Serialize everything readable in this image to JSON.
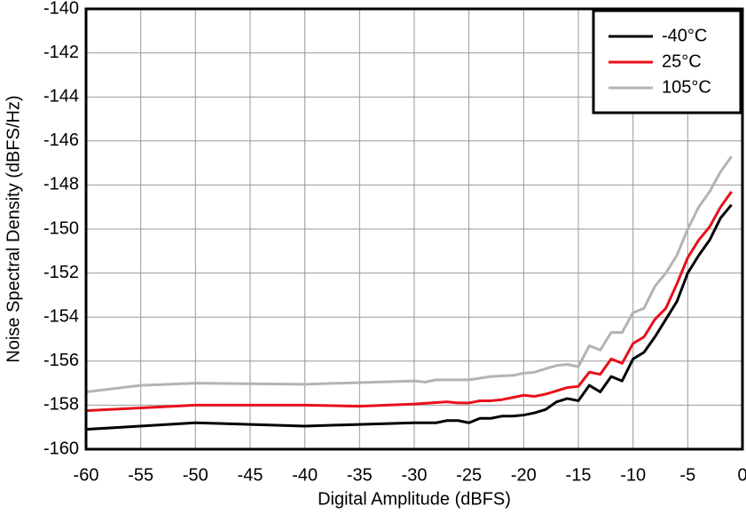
{
  "chart_data": {
    "type": "line",
    "xlabel": "Digital Amplitude (dBFS)",
    "ylabel": "Noise Spectral Density (dBFS/Hz)",
    "xlim": [
      -60,
      0
    ],
    "xticks": [
      -60,
      -55,
      -50,
      -45,
      -40,
      -35,
      -30,
      -25,
      -20,
      -15,
      -10,
      -5,
      0
    ],
    "ylim": [
      -160,
      -140
    ],
    "yticks": [
      -160,
      -158,
      -156,
      -154,
      -152,
      -150,
      -148,
      -146,
      -144,
      -142,
      -140
    ],
    "grid": true,
    "legend": "upper right",
    "series": [
      {
        "name": "-40°C",
        "color": "#000000",
        "x": [
          -60,
          -50,
          -40,
          -30,
          -28,
          -27,
          -26,
          -25,
          -24,
          -23,
          -22,
          -21,
          -20,
          -19,
          -18,
          -17,
          -16,
          -15,
          -14,
          -13,
          -12,
          -11,
          -10,
          -9,
          -8,
          -7,
          -6,
          -5,
          -4,
          -3,
          -2,
          -1
        ],
        "values": [
          -159.1,
          -158.8,
          -158.95,
          -158.8,
          -158.8,
          -158.7,
          -158.7,
          -158.8,
          -158.6,
          -158.6,
          -158.5,
          -158.5,
          -158.45,
          -158.35,
          -158.2,
          -157.85,
          -157.7,
          -157.8,
          -157.1,
          -157.4,
          -156.7,
          -156.9,
          -155.9,
          -155.6,
          -154.9,
          -154.1,
          -153.3,
          -152.0,
          -151.2,
          -150.5,
          -149.5,
          -148.9
        ]
      },
      {
        "name": "25°C",
        "color": "#e8101a",
        "x": [
          -60,
          -50,
          -40,
          -35,
          -30,
          -27,
          -26,
          -25,
          -24,
          -23,
          -22,
          -21,
          -20,
          -19,
          -18,
          -17,
          -16,
          -15,
          -14,
          -13,
          -12,
          -11,
          -10,
          -9,
          -8,
          -7,
          -6,
          -5,
          -4,
          -3,
          -2,
          -1
        ],
        "values": [
          -158.25,
          -158.0,
          -158.0,
          -158.05,
          -157.95,
          -157.85,
          -157.9,
          -157.9,
          -157.8,
          -157.8,
          -157.75,
          -157.65,
          -157.55,
          -157.6,
          -157.5,
          -157.35,
          -157.2,
          -157.15,
          -156.5,
          -156.6,
          -155.9,
          -156.1,
          -155.2,
          -154.9,
          -154.1,
          -153.6,
          -152.5,
          -151.3,
          -150.5,
          -149.9,
          -149.0,
          -148.3
        ]
      },
      {
        "name": "105°C",
        "color": "#b3b3b3",
        "x": [
          -60,
          -55,
          -50,
          -40,
          -30,
          -29,
          -28,
          -25,
          -23,
          -21,
          -20,
          -19,
          -18,
          -17,
          -16,
          -15,
          -14,
          -13,
          -12,
          -11,
          -10,
          -9,
          -8,
          -7,
          -6,
          -5,
          -4,
          -3,
          -2,
          -1
        ],
        "values": [
          -157.4,
          -157.1,
          -157.0,
          -157.05,
          -156.9,
          -156.95,
          -156.85,
          -156.85,
          -156.7,
          -156.65,
          -156.55,
          -156.5,
          -156.35,
          -156.2,
          -156.15,
          -156.25,
          -155.3,
          -155.5,
          -154.7,
          -154.7,
          -153.8,
          -153.6,
          -152.6,
          -152.0,
          -151.2,
          -150.0,
          -149.0,
          -148.3,
          -147.4,
          -146.7
        ]
      }
    ]
  }
}
